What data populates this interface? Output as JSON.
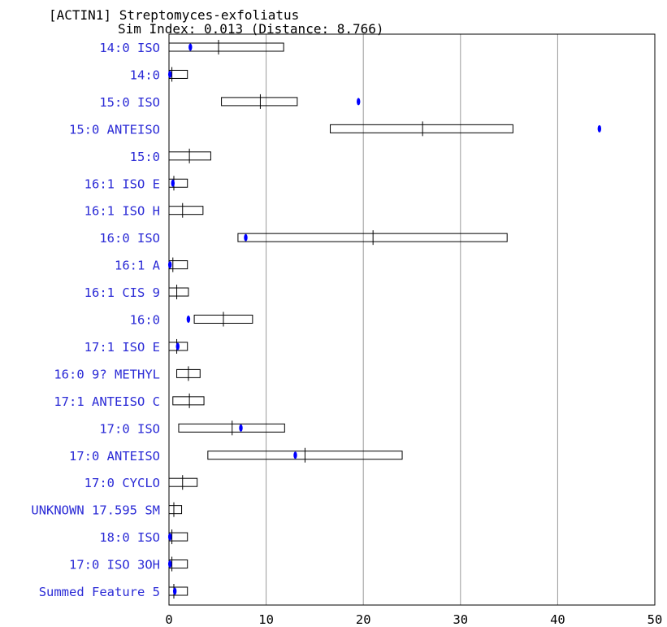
{
  "chart_data": {
    "type": "box",
    "title": "[ACTIN1] Streptomyces-exfoliatus",
    "subtitle": "Sim Index: 0.013 (Distance: 8.766)",
    "xlabel": "",
    "ylabel": "",
    "xlim": [
      0,
      50
    ],
    "x_ticks": [
      0,
      10,
      20,
      30,
      40,
      50
    ],
    "grid": "vertical",
    "colors": {
      "category_text": "#2b2bd6",
      "marker": "#0000ff",
      "grid": "#999999",
      "box": "#000000"
    },
    "categories": [
      "14:0 ISO",
      "14:0",
      "15:0 ISO",
      "15:0 ANTEISO",
      "15:0",
      "16:1 ISO E",
      "16:1 ISO H",
      "16:0 ISO",
      "16:1 A",
      "16:1 CIS 9",
      "16:0",
      "17:1 ISO E",
      "16:0 9? METHYL",
      "17:1 ANTEISO C",
      "17:0 ISO",
      "17:0 ANTEISO",
      "17:0 CYCLO",
      "UNKNOWN 17.595 SM",
      "18:0 ISO",
      "17:0 ISO 3OH",
      "Summed Feature 5"
    ],
    "ranges": [
      [
        0,
        11.8
      ],
      [
        0,
        1.9
      ],
      [
        5.4,
        13.2
      ],
      [
        16.6,
        35.4
      ],
      [
        0,
        4.3
      ],
      [
        0,
        1.9
      ],
      [
        0,
        3.5
      ],
      [
        7.1,
        34.8
      ],
      [
        0,
        1.9
      ],
      [
        0,
        2.0
      ],
      [
        2.6,
        8.6
      ],
      [
        0,
        1.9
      ],
      [
        0.8,
        3.2
      ],
      [
        0.4,
        3.6
      ],
      [
        1.0,
        11.9
      ],
      [
        4.0,
        24.0
      ],
      [
        0,
        2.9
      ],
      [
        0,
        1.3
      ],
      [
        0,
        1.9
      ],
      [
        0,
        1.9
      ],
      [
        0,
        1.9
      ]
    ],
    "means": [
      5.1,
      0.3,
      9.4,
      26.1,
      2.1,
      0.5,
      1.4,
      21.0,
      0.4,
      0.8,
      5.6,
      0.8,
      2.0,
      2.1,
      6.5,
      14.0,
      1.4,
      0.5,
      0.3,
      0.3,
      0.5
    ],
    "sample_values": [
      2.2,
      0.1,
      19.5,
      44.3,
      null,
      0.4,
      null,
      7.9,
      0.1,
      null,
      2.0,
      0.9,
      null,
      null,
      7.4,
      13.0,
      null,
      null,
      0.1,
      0.1,
      0.6
    ]
  }
}
